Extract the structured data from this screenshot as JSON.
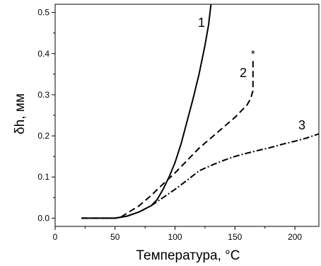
{
  "chart_data": {
    "type": "line",
    "title": "",
    "xlabel": "Температура, °C",
    "ylabel": "δh, мм",
    "xlim": [
      0,
      220
    ],
    "ylim": [
      -0.02,
      0.52
    ],
    "x_ticks": [
      0,
      50,
      100,
      150,
      200
    ],
    "y_ticks": [
      0.0,
      0.1,
      0.2,
      0.3,
      0.4,
      0.5
    ],
    "x_tick_labels": [
      "0",
      "50",
      "100",
      "150",
      "200"
    ],
    "y_tick_labels": [
      "0.0",
      "0.1",
      "0.2",
      "0.3",
      "0.4",
      "0.5"
    ],
    "grid": false,
    "legend": "none",
    "series": [
      {
        "label": "1",
        "style": "solid",
        "color": "#000000",
        "x": [
          22,
          30,
          40,
          50,
          60,
          70,
          80,
          85,
          90,
          95,
          100,
          105,
          110,
          115,
          120,
          125,
          128,
          130
        ],
        "y": [
          0.0,
          0.0,
          0.0,
          0.0,
          0.005,
          0.015,
          0.03,
          0.045,
          0.07,
          0.1,
          0.135,
          0.18,
          0.235,
          0.29,
          0.35,
          0.42,
          0.47,
          0.52
        ]
      },
      {
        "label": "2",
        "style": "dashed",
        "color": "#000000",
        "x": [
          22,
          30,
          40,
          50,
          55,
          60,
          70,
          80,
          90,
          100,
          110,
          120,
          130,
          140,
          150,
          155,
          160,
          163,
          165,
          165,
          165
        ],
        "y": [
          0.0,
          0.0,
          0.0,
          0.0,
          0.003,
          0.012,
          0.03,
          0.055,
          0.083,
          0.11,
          0.14,
          0.17,
          0.195,
          0.22,
          0.245,
          0.26,
          0.275,
          0.29,
          0.31,
          0.35,
          0.385
        ]
      },
      {
        "label": "3",
        "style": "dashdot",
        "color": "#000000",
        "x": [
          22,
          30,
          40,
          50,
          60,
          70,
          80,
          90,
          100,
          110,
          120,
          130,
          140,
          150,
          160,
          170,
          180,
          190,
          200,
          210,
          220
        ],
        "y": [
          0.0,
          0.0,
          0.0,
          0.0,
          0.005,
          0.015,
          0.03,
          0.05,
          0.07,
          0.092,
          0.115,
          0.128,
          0.14,
          0.15,
          0.158,
          0.165,
          0.172,
          0.18,
          0.187,
          0.195,
          0.205
        ]
      }
    ],
    "annotations": [
      {
        "text": "*",
        "x": 165,
        "y": 0.405
      }
    ]
  }
}
